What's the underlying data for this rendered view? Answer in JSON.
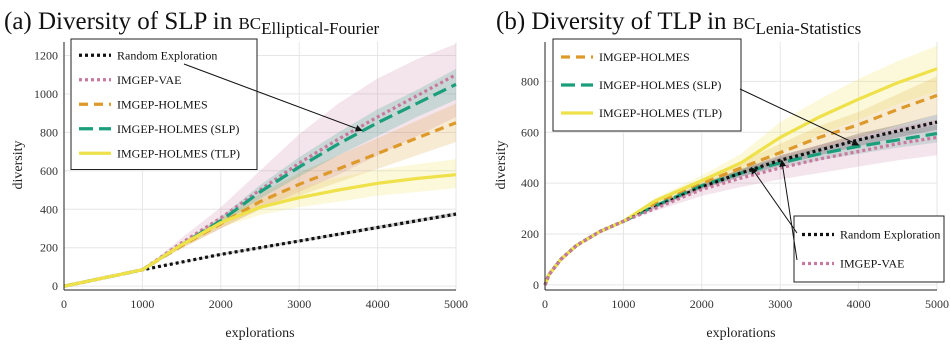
{
  "colors": {
    "random": "#111111",
    "vae": "#c9799e",
    "holmes": "#dd9a2a",
    "slp": "#1a9e7b",
    "tlp": "#efe14a"
  },
  "chart_data": [
    {
      "type": "line",
      "title_main": "(a) Diversity of SLP in ",
      "title_bc": "BC",
      "title_sub": "Elliptical-Fourier",
      "xlabel": "explorations",
      "ylabel": "diversity",
      "xlim": [
        0,
        5000
      ],
      "ylim": [
        -20,
        1270
      ],
      "xticks": [
        0,
        1000,
        2000,
        3000,
        4000,
        5000
      ],
      "yticks": [
        0,
        200,
        400,
        600,
        800,
        1000,
        1200
      ],
      "grid": true,
      "legend_position": "top-left",
      "series": [
        {
          "name": "Random Exploration",
          "key": "random",
          "dash": "3,3",
          "x": [
            0,
            1000,
            2000,
            3000,
            4000,
            5000
          ],
          "y": [
            0,
            85,
            165,
            235,
            305,
            375
          ],
          "lo": [
            0,
            85,
            160,
            228,
            296,
            365
          ],
          "hi": [
            0,
            85,
            170,
            242,
            314,
            385
          ]
        },
        {
          "name": "IMGEP-VAE",
          "key": "vae",
          "dash": "3,3",
          "x": [
            0,
            1000,
            1500,
            2000,
            2500,
            3000,
            3500,
            4000,
            4500,
            5000
          ],
          "y": [
            0,
            85,
            225,
            355,
            500,
            640,
            765,
            880,
            990,
            1100
          ],
          "lo": [
            0,
            85,
            200,
            300,
            400,
            490,
            580,
            680,
            780,
            880
          ],
          "hi": [
            0,
            85,
            250,
            410,
            600,
            790,
            950,
            1080,
            1180,
            1260
          ]
        },
        {
          "name": "IMGEP-HOLMES",
          "key": "holmes",
          "dash": "9,6",
          "x": [
            0,
            1000,
            1500,
            2000,
            2500,
            3000,
            3500,
            4000,
            4500,
            5000
          ],
          "y": [
            0,
            85,
            210,
            325,
            440,
            530,
            610,
            690,
            770,
            850
          ],
          "lo": [
            0,
            85,
            195,
            300,
            400,
            470,
            540,
            610,
            680,
            750
          ],
          "hi": [
            0,
            85,
            225,
            350,
            480,
            590,
            680,
            770,
            860,
            950
          ]
        },
        {
          "name": "IMGEP-HOLMES (SLP)",
          "key": "slp",
          "dash": "14,6",
          "x": [
            0,
            1000,
            1500,
            2000,
            2500,
            3000,
            3500,
            4000,
            4500,
            5000
          ],
          "y": [
            0,
            85,
            215,
            340,
            490,
            620,
            740,
            850,
            950,
            1050
          ],
          "lo": [
            0,
            85,
            205,
            320,
            455,
            570,
            680,
            780,
            880,
            970
          ],
          "hi": [
            0,
            85,
            225,
            360,
            525,
            670,
            800,
            920,
            1020,
            1130
          ]
        },
        {
          "name": "IMGEP-HOLMES (TLP)",
          "key": "tlp",
          "dash": "",
          "x": [
            0,
            1000,
            1500,
            2000,
            2500,
            3000,
            3500,
            4000,
            4500,
            5000
          ],
          "y": [
            0,
            85,
            215,
            330,
            410,
            460,
            500,
            535,
            560,
            580
          ],
          "lo": [
            0,
            85,
            200,
            305,
            370,
            410,
            440,
            470,
            490,
            510
          ],
          "hi": [
            0,
            85,
            230,
            355,
            450,
            515,
            565,
            605,
            635,
            660
          ]
        }
      ],
      "annotation": {
        "text_series": "IMGEP-VAE",
        "x": 3800,
        "y": 820
      }
    },
    {
      "type": "line",
      "title_main": "(b) Diversity of TLP in ",
      "title_bc": "BC",
      "title_sub": "Lenia-Statistics",
      "xlabel": "explorations",
      "ylabel": "diversity",
      "xlim": [
        0,
        5000
      ],
      "ylim": [
        -20,
        955
      ],
      "xticks": [
        0,
        1000,
        2000,
        3000,
        4000,
        5000
      ],
      "yticks": [
        0,
        200,
        400,
        600,
        800
      ],
      "grid": true,
      "legend_position": "top-left",
      "series": [
        {
          "name": "IMGEP-HOLMES",
          "key": "holmes",
          "dash": "9,6",
          "x": [
            0,
            50,
            200,
            400,
            700,
            1000,
            1400,
            2000,
            2500,
            3000,
            3500,
            4000,
            4500,
            5000
          ],
          "y": [
            0,
            40,
            100,
            155,
            210,
            250,
            320,
            400,
            460,
            520,
            580,
            630,
            690,
            745
          ],
          "lo": [
            0,
            40,
            100,
            155,
            210,
            250,
            315,
            385,
            435,
            485,
            535,
            580,
            625,
            670
          ],
          "hi": [
            0,
            40,
            100,
            155,
            210,
            250,
            325,
            415,
            485,
            555,
            625,
            680,
            750,
            820
          ]
        },
        {
          "name": "IMGEP-HOLMES (SLP)",
          "key": "slp",
          "dash": "14,6",
          "x": [
            0,
            50,
            200,
            400,
            700,
            1000,
            1400,
            2000,
            2500,
            3000,
            3500,
            4000,
            4500,
            5000
          ],
          "y": [
            0,
            40,
            100,
            155,
            210,
            250,
            310,
            390,
            440,
            480,
            515,
            545,
            570,
            595
          ],
          "lo": [
            0,
            40,
            100,
            155,
            210,
            250,
            305,
            380,
            425,
            460,
            490,
            515,
            540,
            560
          ],
          "hi": [
            0,
            40,
            100,
            155,
            210,
            250,
            315,
            400,
            455,
            500,
            540,
            575,
            600,
            630
          ]
        },
        {
          "name": "IMGEP-HOLMES (TLP)",
          "key": "tlp",
          "dash": "",
          "x": [
            0,
            50,
            200,
            400,
            700,
            1000,
            1400,
            2000,
            2500,
            3000,
            3500,
            4000,
            4500,
            5000
          ],
          "y": [
            0,
            40,
            100,
            155,
            210,
            250,
            330,
            410,
            480,
            580,
            660,
            730,
            795,
            850
          ],
          "lo": [
            0,
            40,
            100,
            155,
            210,
            250,
            320,
            390,
            445,
            520,
            590,
            650,
            710,
            760
          ],
          "hi": [
            0,
            40,
            100,
            155,
            210,
            250,
            340,
            430,
            515,
            640,
            730,
            810,
            880,
            940
          ]
        },
        {
          "name": "Random Exploration",
          "key": "random",
          "dash": "3,3",
          "x": [
            0,
            50,
            200,
            400,
            700,
            1000,
            1400,
            2000,
            2500,
            3000,
            3500,
            4000,
            4500,
            5000
          ],
          "y": [
            0,
            40,
            100,
            155,
            210,
            250,
            305,
            385,
            440,
            490,
            530,
            570,
            605,
            640
          ],
          "lo": [
            0,
            40,
            100,
            155,
            210,
            250,
            300,
            375,
            425,
            470,
            510,
            545,
            580,
            610
          ],
          "hi": [
            0,
            40,
            100,
            155,
            210,
            250,
            310,
            395,
            455,
            510,
            550,
            595,
            630,
            670
          ]
        },
        {
          "name": "IMGEP-VAE",
          "key": "vae",
          "dash": "3,3",
          "x": [
            0,
            50,
            200,
            400,
            700,
            1000,
            1400,
            2000,
            2500,
            3000,
            3500,
            4000,
            4500,
            5000
          ],
          "y": [
            0,
            40,
            100,
            155,
            210,
            250,
            300,
            375,
            420,
            460,
            495,
            525,
            555,
            580
          ],
          "lo": [
            0,
            40,
            100,
            155,
            210,
            250,
            290,
            350,
            385,
            415,
            440,
            465,
            490,
            510
          ],
          "hi": [
            0,
            40,
            100,
            155,
            210,
            250,
            310,
            400,
            455,
            505,
            550,
            585,
            620,
            650
          ]
        }
      ],
      "legend_top": [
        "IMGEP-HOLMES",
        "IMGEP-HOLMES (SLP)",
        "IMGEP-HOLMES (TLP)"
      ],
      "legend_bottom": [
        "Random Exploration",
        "IMGEP-VAE"
      ],
      "annotations": [
        {
          "from_series": "IMGEP-HOLMES (SLP)",
          "x": 4000,
          "y": 550
        },
        {
          "from_series": "Random Exploration",
          "x": 2600,
          "y": 462
        },
        {
          "from_series": "IMGEP-VAE",
          "x": 3000,
          "y": 490
        }
      ]
    }
  ]
}
